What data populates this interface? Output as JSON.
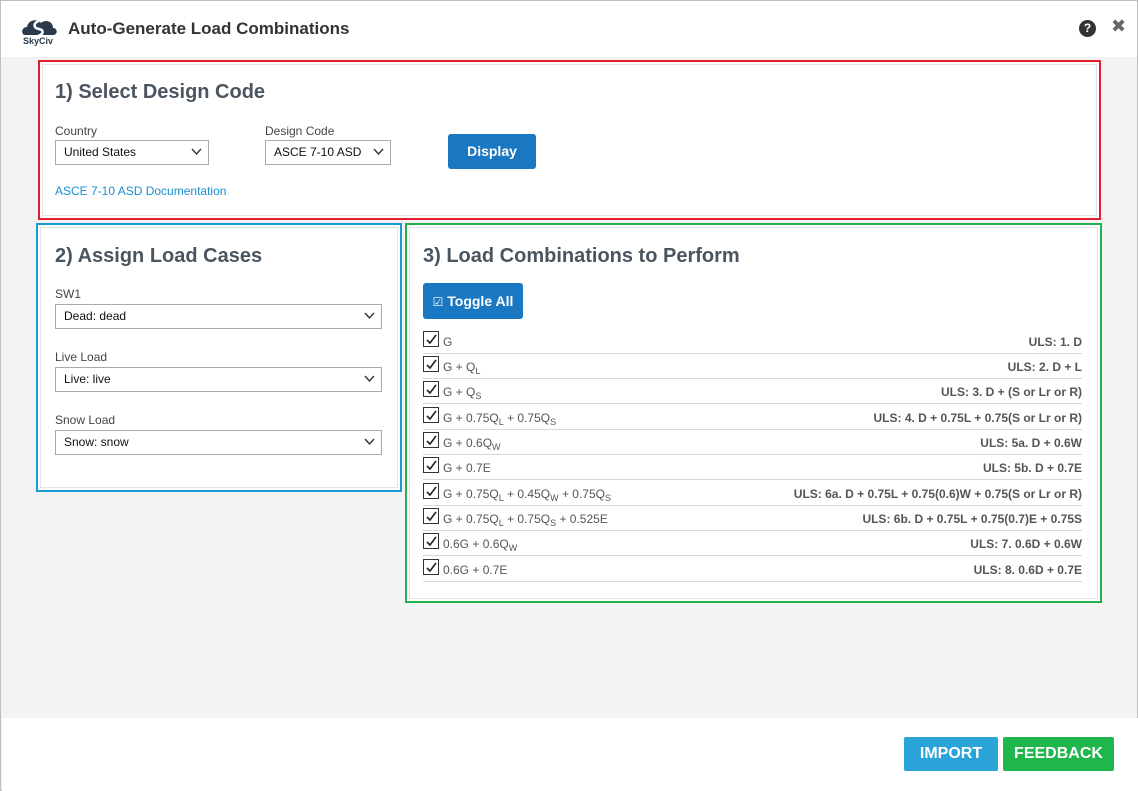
{
  "window": {
    "title": "Auto-Generate Load Combinations",
    "logo_text": "SkyCiv"
  },
  "section1": {
    "title": "1) Select Design Code",
    "country_label": "Country",
    "country_value": "United States",
    "code_label": "Design Code",
    "code_value": "ASCE 7-10 ASD",
    "display_button": "Display",
    "doc_link": "ASCE 7-10 ASD Documentation"
  },
  "section2": {
    "title": "2) Assign Load Cases",
    "fields": [
      {
        "label": "SW1",
        "value": "Dead: dead"
      },
      {
        "label": "Live Load",
        "value": "Live: live"
      },
      {
        "label": "Snow Load",
        "value": "Snow: snow"
      }
    ]
  },
  "section3": {
    "title": "3) Load Combinations to Perform",
    "toggle_button": "Toggle All",
    "combinations": [
      {
        "label": "G",
        "uls": "ULS: 1. D",
        "checked": true
      },
      {
        "label": "G + Q_L",
        "uls": "ULS: 2. D + L",
        "checked": true
      },
      {
        "label": "G + Q_S",
        "uls": "ULS: 3. D + (S or Lr or R)",
        "checked": true
      },
      {
        "label": "G + 0.75Q_L + 0.75Q_S",
        "uls": "ULS: 4. D + 0.75L + 0.75(S or Lr or R)",
        "checked": true
      },
      {
        "label": "G + 0.6Q_W",
        "uls": "ULS: 5a. D + 0.6W",
        "checked": true
      },
      {
        "label": "G + 0.7E",
        "uls": "ULS: 5b. D + 0.7E",
        "checked": true
      },
      {
        "label": "G + 0.75Q_L + 0.45Q_W + 0.75Q_S",
        "uls": "ULS: 6a. D + 0.75L + 0.75(0.6)W + 0.75(S or Lr or R)",
        "checked": true
      },
      {
        "label": "G + 0.75Q_L + 0.75Q_S + 0.525E",
        "uls": "ULS: 6b. D + 0.75L + 0.75(0.7)E + 0.75S",
        "checked": true
      },
      {
        "label": "0.6G + 0.6Q_W",
        "uls": "ULS: 7. 0.6D + 0.6W",
        "checked": true
      },
      {
        "label": "0.6G + 0.7E",
        "uls": "ULS: 8. 0.6D + 0.7E",
        "checked": true
      }
    ]
  },
  "footer": {
    "import_button": "IMPORT",
    "feedback_button": "FEEDBACK"
  },
  "colors": {
    "section1_border": "#e31e2e",
    "section2_border": "#1a9ad6",
    "section3_border": "#22b14c",
    "primary_button": "#1a78c2",
    "import_button": "#2aa4d8",
    "feedback_button": "#1fb64b"
  },
  "icons": {
    "help": "question-circle-icon",
    "close": "close-icon",
    "select_arrow": "chevron-down-icon",
    "checkbox": "checkmark-icon"
  }
}
